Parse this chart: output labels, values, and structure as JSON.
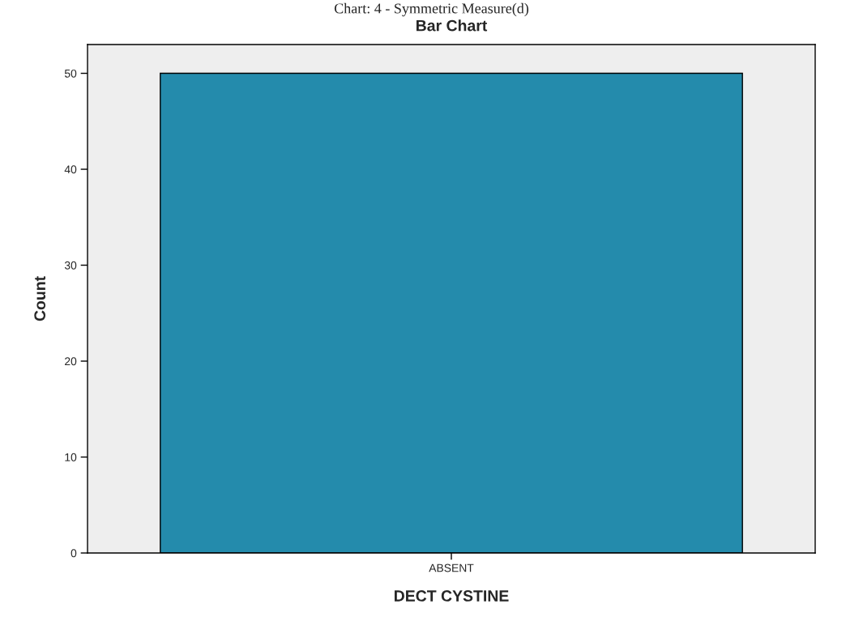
{
  "chart_data": {
    "type": "bar",
    "title": "Bar Chart",
    "xlabel": "DECT CYSTINE",
    "ylabel": "Count",
    "categories": [
      "ABSENT"
    ],
    "values": [
      50
    ],
    "color": "#248bac",
    "ylim": [
      0,
      53
    ],
    "yticks": [
      0,
      10,
      20,
      30,
      40,
      50
    ],
    "grid": false,
    "annotations": [
      "Chart: 4 - Symmetric Measure(d)"
    ]
  }
}
